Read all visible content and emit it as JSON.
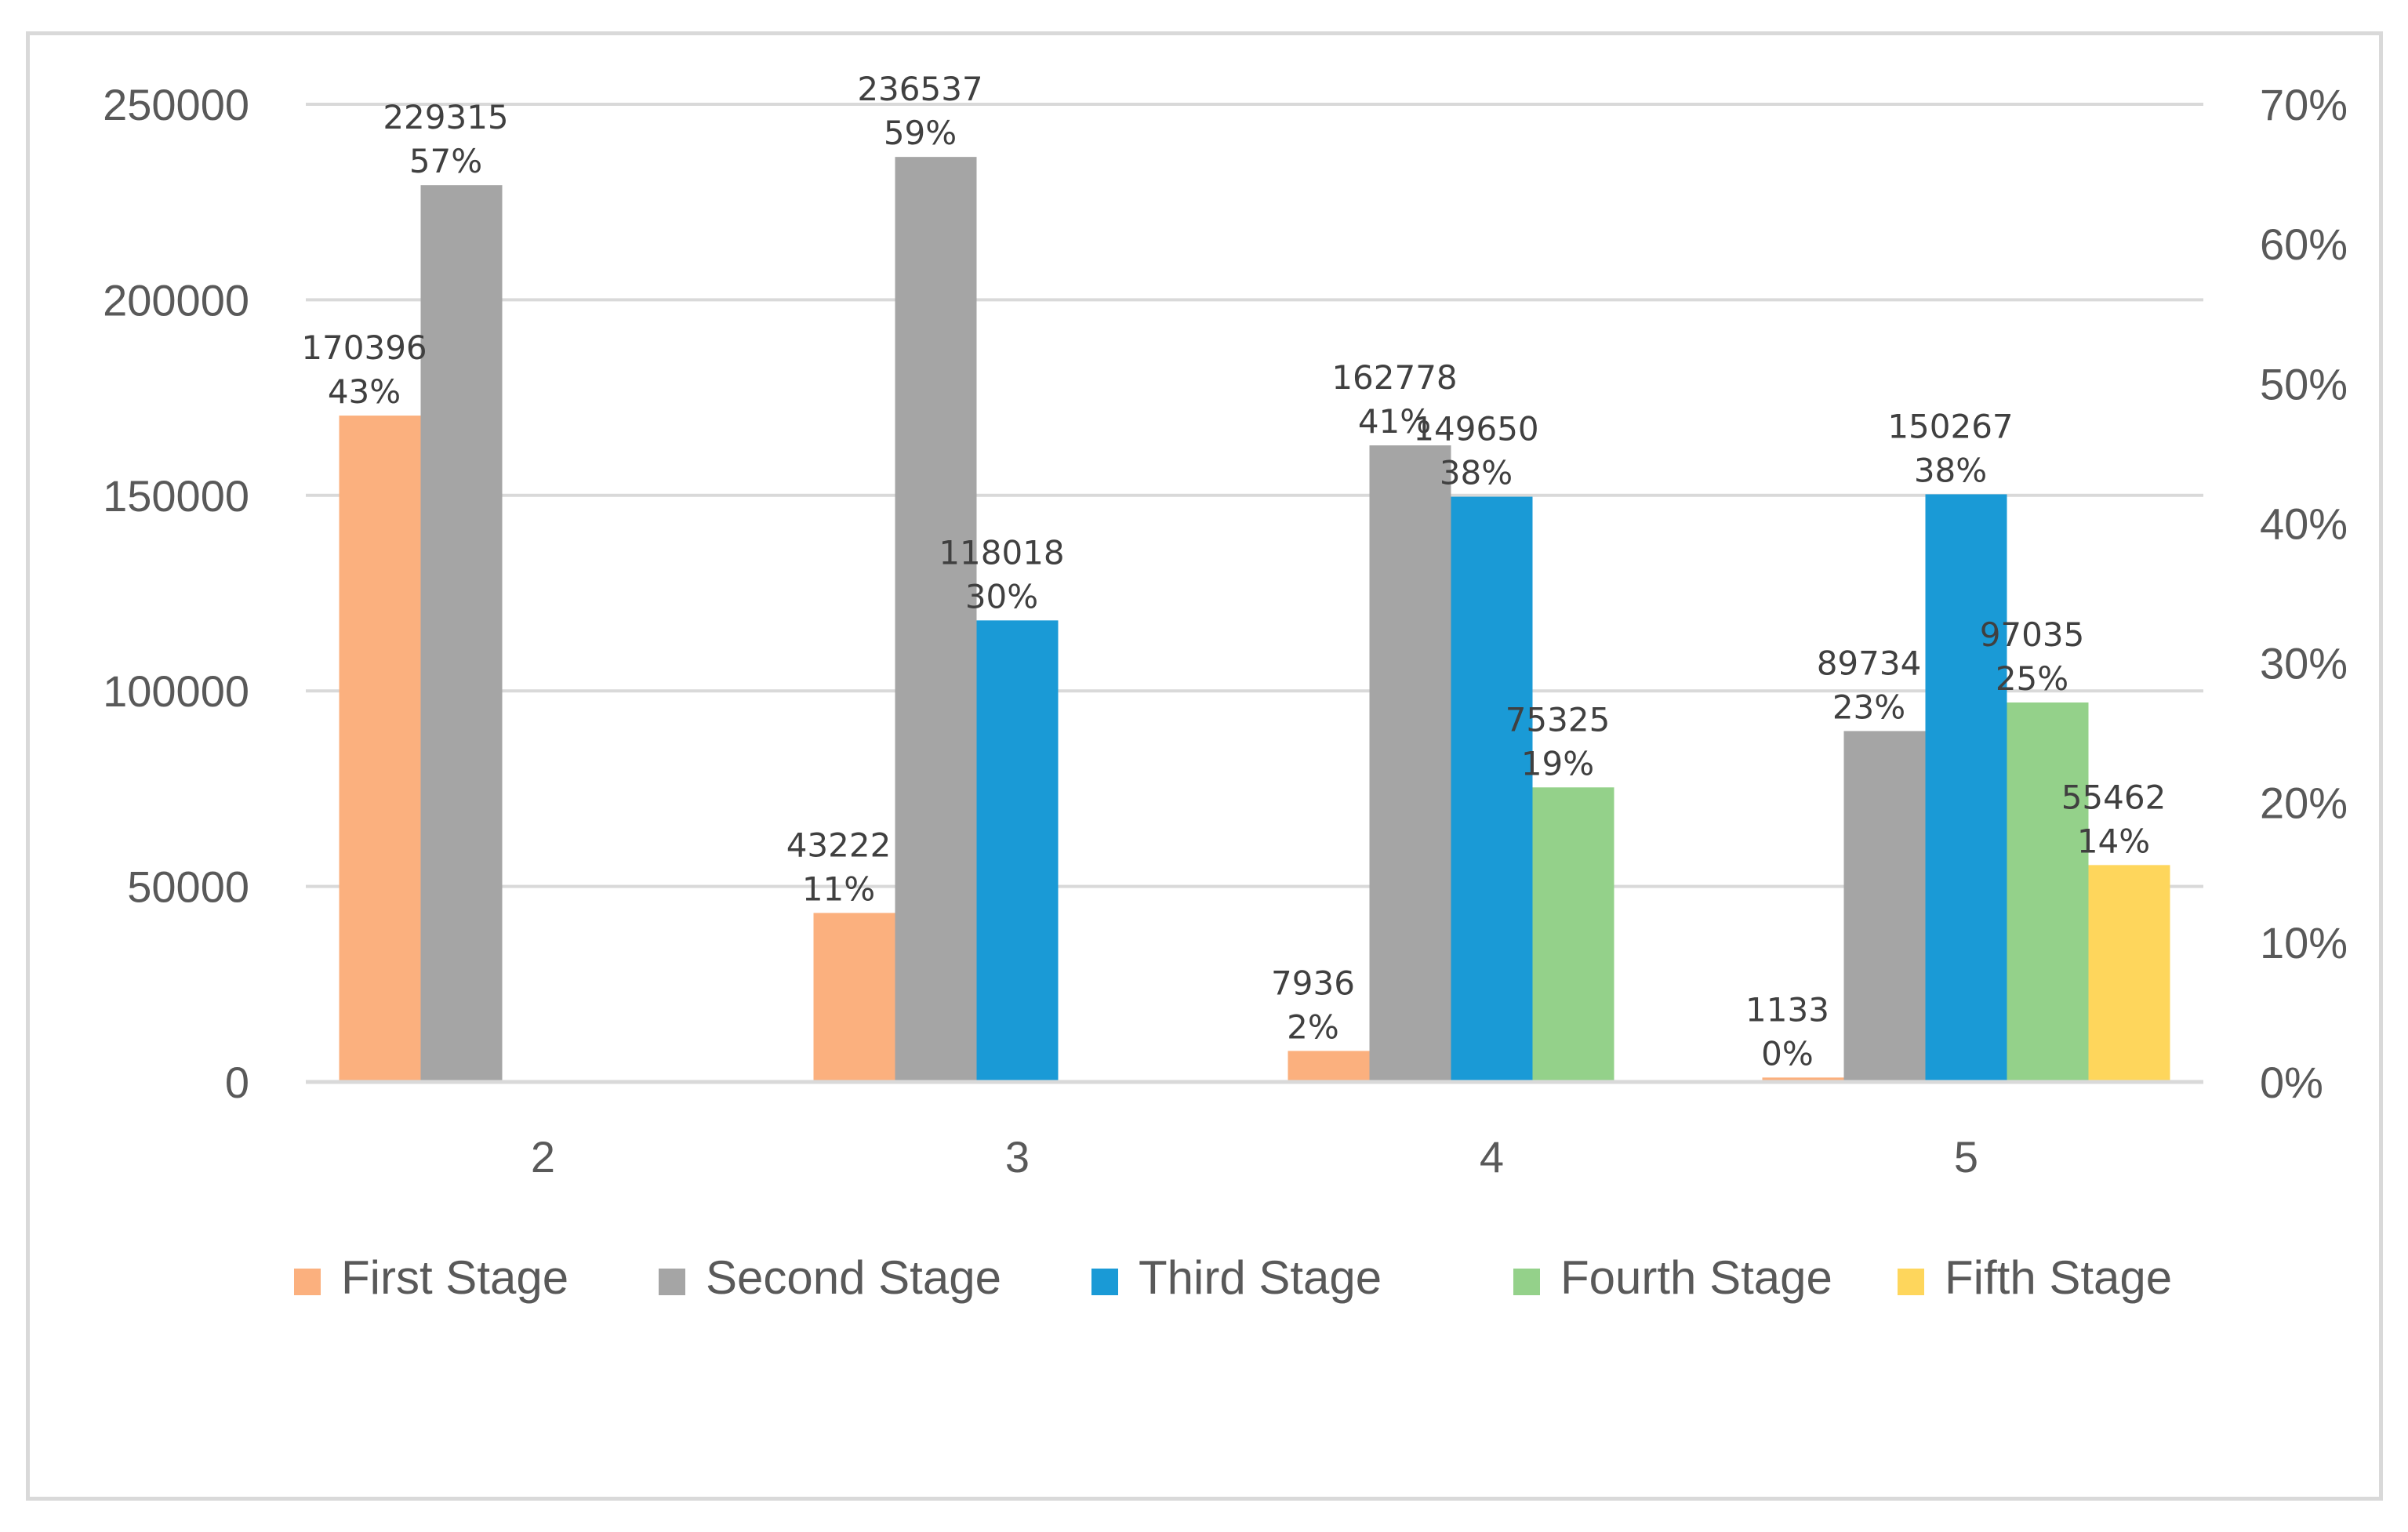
{
  "chart_data": {
    "type": "bar",
    "title": "",
    "xlabel": "",
    "ylabel": "",
    "categories": [
      "2",
      "3",
      "4",
      "5"
    ],
    "ylim": [
      0,
      250000
    ],
    "y_ticks": [
      "0",
      "50000",
      "100000",
      "150000",
      "200000",
      "250000"
    ],
    "y2lim": [
      0,
      70
    ],
    "y2_ticks": [
      "0%",
      "10%",
      "20%",
      "30%",
      "40%",
      "50%",
      "60%",
      "70%"
    ],
    "grid": true,
    "legend_position": "bottom",
    "series": [
      {
        "name": "First Stage",
        "color": "#fbb07e",
        "values": [
          170396,
          43222,
          7936,
          1133
        ],
        "pct_labels": [
          "43%",
          "11%",
          "2%",
          "0%"
        ]
      },
      {
        "name": "Second Stage",
        "color": "#a5a5a5",
        "values": [
          229315,
          236537,
          162778,
          89734
        ],
        "pct_labels": [
          "57%",
          "59%",
          "41%",
          "23%"
        ]
      },
      {
        "name": "Third Stage",
        "color": "#1a9ad6",
        "values": [
          null,
          118018,
          149650,
          150267
        ],
        "pct_labels": [
          null,
          "30%",
          "38%",
          "38%"
        ]
      },
      {
        "name": "Fourth Stage",
        "color": "#94d18a",
        "values": [
          null,
          null,
          75325,
          97035
        ],
        "pct_labels": [
          null,
          null,
          "19%",
          "25%"
        ]
      },
      {
        "name": "Fifth Stage",
        "color": "#fed65c",
        "values": [
          null,
          null,
          null,
          55462
        ],
        "pct_labels": [
          null,
          null,
          null,
          "14%"
        ]
      }
    ]
  }
}
